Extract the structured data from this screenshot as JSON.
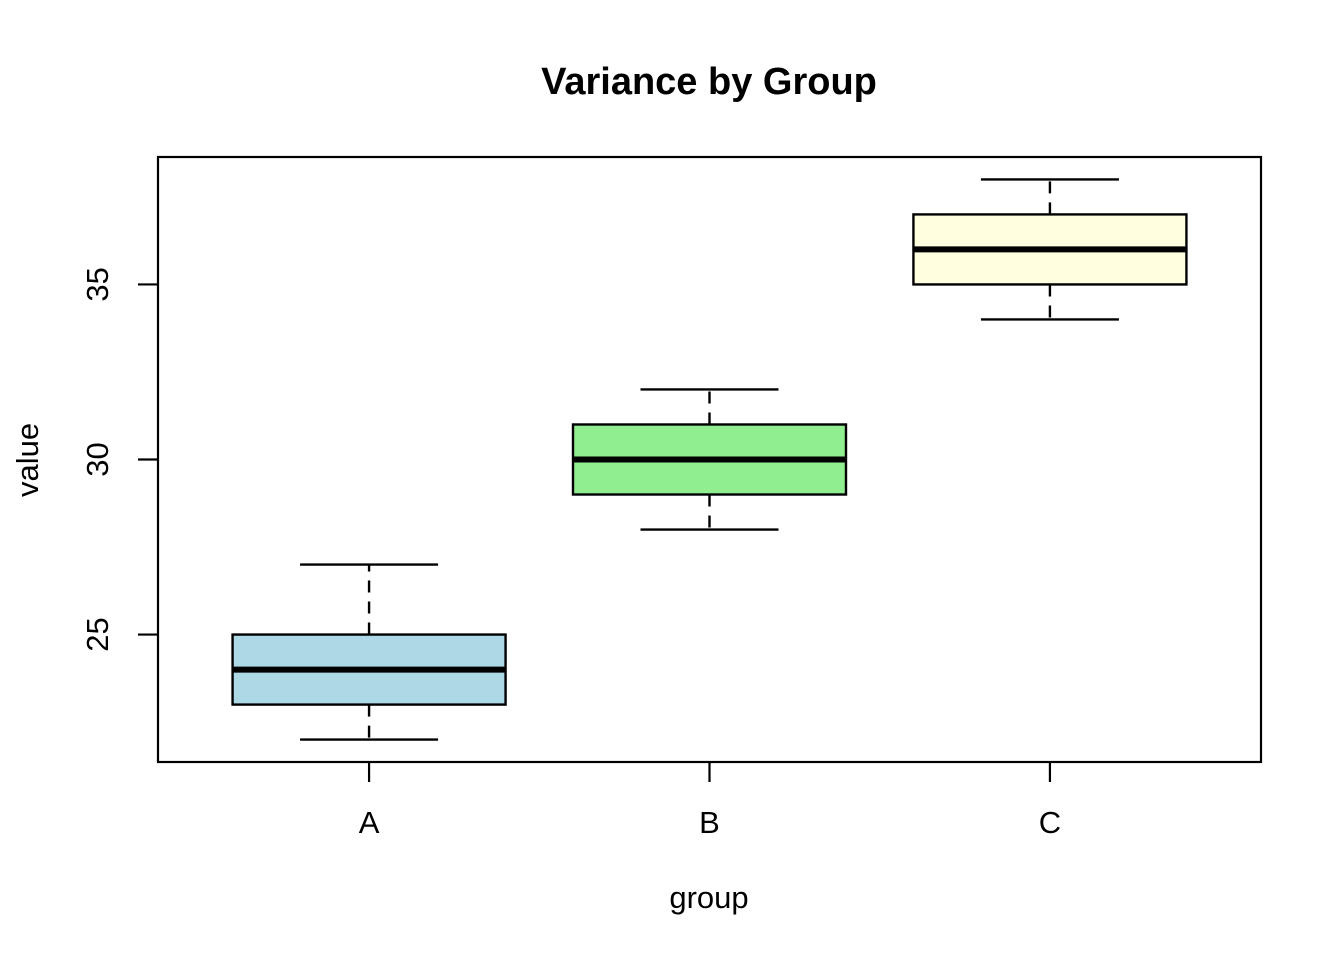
{
  "page": {
    "background": "#FFFFFF",
    "foreground": "#000000"
  },
  "chart_data": {
    "type": "boxplot",
    "title": "Variance by Group",
    "xlabel": "group",
    "ylabel": "value",
    "categories": [
      "A",
      "B",
      "C"
    ],
    "series": [
      {
        "name": "A",
        "whisker_low": 22,
        "q1": 23,
        "median": 24,
        "q3": 25,
        "whisker_high": 27,
        "fill": "#ADD8E6"
      },
      {
        "name": "B",
        "whisker_low": 28,
        "q1": 29,
        "median": 30,
        "q3": 31,
        "whisker_high": 32,
        "fill": "#90EE90"
      },
      {
        "name": "C",
        "whisker_low": 34,
        "q1": 35,
        "median": 36,
        "q3": 37,
        "whisker_high": 38,
        "fill": "#FFFFE0"
      }
    ],
    "y_ticks": [
      "25",
      "30",
      "35"
    ],
    "y_tick_values": [
      25,
      30,
      35
    ],
    "ylim": [
      21.36,
      38.64
    ],
    "x_positions": [
      1,
      2,
      3
    ],
    "xlim": [
      0.38,
      3.62
    ],
    "grid": false,
    "legend": null,
    "axis_color": "#000000",
    "median_color": "#000000",
    "whisker_style": "dashed"
  }
}
